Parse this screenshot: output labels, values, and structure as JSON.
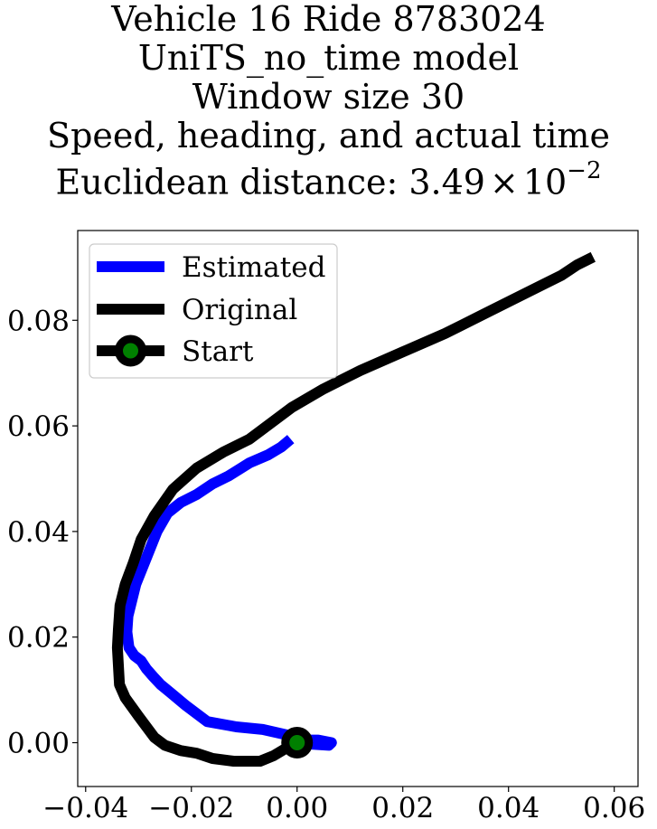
{
  "title_lines": [
    "Vehicle 16 Ride 8783024",
    "UniTS_no_time model",
    "Window size 30",
    "Speed, heading, and actual time"
  ],
  "distance": {
    "prefix": "Euclidean distance: ",
    "mantissa": "3.49",
    "times": "×",
    "base": "10",
    "exponent": "−2"
  },
  "chart_data": {
    "type": "line",
    "xlim": [
      -0.0415,
      0.0645
    ],
    "ylim": [
      -0.0083,
      0.097
    ],
    "xticks": [
      -0.04,
      -0.02,
      0.0,
      0.02,
      0.04,
      0.06
    ],
    "xtick_labels": [
      "−0.04",
      "−0.02",
      "0.00",
      "0.02",
      "0.04",
      "0.06"
    ],
    "yticks": [
      0.0,
      0.02,
      0.04,
      0.06,
      0.08
    ],
    "ytick_labels": [
      "0.00",
      "0.02",
      "0.04",
      "0.06",
      "0.08"
    ],
    "grid": false,
    "legend_position": "upper-left",
    "series": [
      {
        "name": "Estimated",
        "color": "#0000ff",
        "x": [
          -0.0012,
          -0.003,
          -0.0055,
          -0.009,
          -0.013,
          -0.016,
          -0.019,
          -0.022,
          -0.0245,
          -0.0265,
          -0.0285,
          -0.0305,
          -0.032,
          -0.0322,
          -0.0318,
          -0.0308,
          -0.0295,
          -0.0285,
          -0.0272,
          -0.0258,
          -0.024,
          -0.021,
          -0.017,
          -0.0115,
          -0.0065,
          -0.002,
          0.001,
          0.004,
          0.0065,
          0.006,
          0.003,
          0.0
        ],
        "y": [
          0.0575,
          0.056,
          0.0545,
          0.053,
          0.0505,
          0.049,
          0.047,
          0.0455,
          0.0435,
          0.04,
          0.035,
          0.03,
          0.024,
          0.021,
          0.018,
          0.0165,
          0.0155,
          0.014,
          0.0125,
          0.011,
          0.0095,
          0.007,
          0.004,
          0.003,
          0.0025,
          0.0015,
          0.0005,
          0.0005,
          0.0,
          -0.0005,
          -0.0003,
          0.0
        ]
      },
      {
        "name": "Original",
        "color": "#000000",
        "x": [
          0.056,
          0.053,
          0.05,
          0.046,
          0.041,
          0.035,
          0.028,
          0.02,
          0.012,
          0.005,
          -0.001,
          -0.005,
          -0.009,
          -0.014,
          -0.019,
          -0.0235,
          -0.027,
          -0.0295,
          -0.031,
          -0.0325,
          -0.0335,
          -0.0338,
          -0.034,
          -0.0336,
          -0.0325,
          -0.03,
          -0.027,
          -0.025,
          -0.022,
          -0.019,
          -0.016,
          -0.012,
          -0.009,
          -0.007,
          -0.0045,
          -0.002,
          0.0
        ],
        "y": [
          0.092,
          0.0905,
          0.0885,
          0.0865,
          0.084,
          0.081,
          0.0775,
          0.074,
          0.0705,
          0.067,
          0.0635,
          0.0605,
          0.0575,
          0.055,
          0.052,
          0.048,
          0.043,
          0.0385,
          0.034,
          0.03,
          0.026,
          0.0215,
          0.018,
          0.011,
          0.0085,
          0.005,
          0.001,
          -0.0005,
          -0.0015,
          -0.002,
          -0.003,
          -0.0035,
          -0.0035,
          -0.0035,
          -0.0025,
          -0.001,
          0.0
        ]
      }
    ],
    "start_point": {
      "name": "Start",
      "x": 0.0,
      "y": 0.0,
      "marker_color": "#008000",
      "edge_color": "#000000"
    }
  }
}
